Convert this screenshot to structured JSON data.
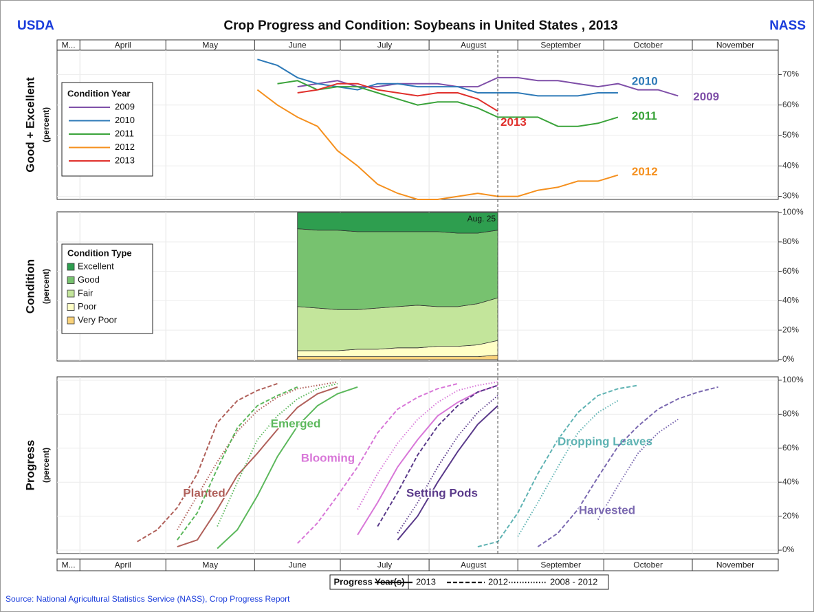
{
  "title": "Crop Progress and Condition: Soybeans in United States , 2013",
  "left_logo": "USDA",
  "right_logo": "NASS",
  "source": "Source: National Agricultural Statistics Service (NASS), Crop Progress Report",
  "marker_label": "Aug. 25",
  "marker_x": 22,
  "x_axis": {
    "xlim": [
      0,
      36
    ],
    "xticks": [
      {
        "value": 0,
        "label": "M..."
      },
      {
        "value": 1.14,
        "label": "April"
      },
      {
        "value": 5.43,
        "label": "May"
      },
      {
        "value": 9.86,
        "label": "June"
      },
      {
        "value": 14.14,
        "label": "July"
      },
      {
        "value": 18.57,
        "label": "August"
      },
      {
        "value": 23,
        "label": "September"
      },
      {
        "value": 27.29,
        "label": "October"
      },
      {
        "value": 31.71,
        "label": "November"
      }
    ]
  },
  "chart_data": [
    {
      "type": "line",
      "ylabel": "Good + Excellent",
      "yunit": "(percent)",
      "ylim": [
        29,
        78
      ],
      "yticks": [
        {
          "value": 30,
          "label": "30%"
        },
        {
          "value": 40,
          "label": "40%"
        },
        {
          "value": 50,
          "label": "50%"
        },
        {
          "value": 60,
          "label": "60%"
        },
        {
          "value": 70,
          "label": "70%"
        }
      ],
      "grid": true,
      "legend_title": "Condition Year",
      "series": [
        {
          "name": "2009",
          "color": "#7f4fa8",
          "x": [
            12,
            13,
            14,
            15,
            16,
            17,
            18,
            19,
            20,
            21,
            22,
            23,
            24,
            25,
            26,
            27,
            28,
            29,
            30,
            31
          ],
          "values": [
            66,
            67,
            68,
            66,
            66,
            67,
            67,
            67,
            66,
            66,
            69,
            69,
            68,
            68,
            67,
            66,
            67,
            65,
            65,
            63
          ]
        },
        {
          "name": "2010",
          "color": "#2e7ab8",
          "x": [
            10,
            11,
            12,
            13,
            14,
            15,
            16,
            17,
            18,
            19,
            20,
            21,
            22,
            23,
            24,
            25,
            26,
            27,
            28
          ],
          "values": [
            75,
            73,
            69,
            67,
            66,
            65,
            67,
            67,
            66,
            66,
            66,
            64,
            64,
            64,
            63,
            63,
            63,
            64,
            64
          ]
        },
        {
          "name": "2011",
          "color": "#3aa33a",
          "x": [
            11,
            12,
            13,
            14,
            15,
            16,
            17,
            18,
            19,
            20,
            21,
            22,
            23,
            24,
            25,
            26,
            27,
            28
          ],
          "values": [
            67,
            68,
            65,
            66,
            66,
            64,
            62,
            60,
            61,
            61,
            59,
            56,
            56,
            56,
            53,
            53,
            54,
            56
          ]
        },
        {
          "name": "2012",
          "color": "#f5901e",
          "x": [
            10,
            11,
            12,
            13,
            14,
            15,
            16,
            17,
            18,
            19,
            20,
            21,
            22,
            23,
            24,
            25,
            26,
            27,
            28
          ],
          "values": [
            65,
            60,
            56,
            53,
            45,
            40,
            34,
            31,
            29,
            29,
            30,
            31,
            30,
            30,
            32,
            33,
            35,
            35,
            37
          ]
        },
        {
          "name": "2013",
          "color": "#e0302c",
          "x": [
            12,
            13,
            14,
            15,
            16,
            17,
            18,
            19,
            20,
            21,
            22
          ],
          "values": [
            64,
            65,
            67,
            67,
            65,
            64,
            63,
            64,
            64,
            62,
            58
          ]
        }
      ]
    },
    {
      "type": "stacked-area",
      "ylabel": "Condition",
      "yunit": "(percent)",
      "ylim": [
        -1,
        100.5
      ],
      "yticks": [
        {
          "value": 0,
          "label": "0%"
        },
        {
          "value": 20,
          "label": "20%"
        },
        {
          "value": 40,
          "label": "40%"
        },
        {
          "value": 60,
          "label": "60%"
        },
        {
          "value": 80,
          "label": "80%"
        },
        {
          "value": 100,
          "label": "100%"
        }
      ],
      "legend_title": "Condition Type",
      "x": [
        12,
        13,
        14,
        15,
        16,
        17,
        18,
        19,
        20,
        21,
        22
      ],
      "series": [
        {
          "name": "Excellent",
          "color": "#2e9e4f",
          "values": [
            11,
            12,
            12,
            13,
            13,
            13,
            13,
            13,
            14,
            14,
            12
          ]
        },
        {
          "name": "Good",
          "color": "#77c26f",
          "values": [
            53,
            53,
            54,
            53,
            52,
            51,
            50,
            51,
            50,
            48,
            46
          ]
        },
        {
          "name": "Fair",
          "color": "#c3e59b",
          "values": [
            30,
            29,
            28,
            27,
            28,
            28,
            29,
            27,
            27,
            28,
            29
          ]
        },
        {
          "name": "Poor",
          "color": "#ffffc6",
          "values": [
            4,
            4,
            4,
            5,
            5,
            6,
            6,
            7,
            7,
            8,
            10
          ]
        },
        {
          "name": "Very Poor",
          "color": "#f9d27a",
          "values": [
            2,
            2,
            2,
            2,
            2,
            2,
            2,
            2,
            2,
            2,
            3
          ]
        }
      ]
    },
    {
      "type": "progress",
      "ylabel": "Progress",
      "yunit": "(percent)",
      "ylim": [
        -2,
        102
      ],
      "yticks": [
        {
          "value": 0,
          "label": "0%"
        },
        {
          "value": 20,
          "label": "20%"
        },
        {
          "value": 40,
          "label": "40%"
        },
        {
          "value": 60,
          "label": "60%"
        },
        {
          "value": 80,
          "label": "80%"
        },
        {
          "value": 100,
          "label": "100%"
        }
      ],
      "legend_title": "Progress Year(s)",
      "progress_years": [
        {
          "name": "2013",
          "style": "solid"
        },
        {
          "name": "2012",
          "style": "dashed"
        },
        {
          "name": "2008 - 2012",
          "style": "dotted"
        }
      ],
      "stages": [
        {
          "name": "Planted",
          "color": "#b0605a",
          "lines": [
            {
              "x": [
                6,
                7,
                8,
                9,
                10,
                11,
                12,
                13,
                14
              ],
              "values": [
                2,
                6,
                24,
                44,
                57,
                71,
                84,
                92,
                96
              ]
            },
            {
              "x": [
                4,
                5,
                6,
                7,
                8,
                9,
                10,
                11
              ],
              "values": [
                5,
                12,
                25,
                45,
                75,
                88,
                94,
                98
              ]
            },
            {
              "x": [
                6,
                7,
                8,
                9,
                10,
                11,
                12,
                13,
                14
              ],
              "values": [
                12,
                32,
                52,
                70,
                82,
                90,
                95,
                97,
                99
              ]
            }
          ]
        },
        {
          "name": "Emerged",
          "color": "#5cb85c",
          "lines": [
            {
              "x": [
                8,
                9,
                10,
                11,
                12,
                13,
                14,
                15
              ],
              "values": [
                1,
                12,
                32,
                55,
                73,
                85,
                92,
                96
              ]
            },
            {
              "x": [
                6,
                7,
                8,
                9,
                10,
                11,
                12
              ],
              "values": [
                6,
                22,
                48,
                72,
                85,
                91,
                96
              ]
            },
            {
              "x": [
                8,
                9,
                10,
                11,
                12,
                13,
                14
              ],
              "values": [
                14,
                40,
                65,
                79,
                89,
                95,
                98
              ]
            }
          ]
        },
        {
          "name": "Blooming",
          "color": "#d877d8",
          "lines": [
            {
              "x": [
                15,
                16,
                17,
                18,
                19,
                20,
                21,
                22
              ],
              "values": [
                9,
                28,
                49,
                65,
                79,
                87,
                93,
                97
              ]
            },
            {
              "x": [
                12,
                13,
                14,
                15,
                16,
                17,
                18,
                19,
                20
              ],
              "values": [
                4,
                16,
                32,
                49,
                69,
                83,
                90,
                95,
                98
              ]
            },
            {
              "x": [
                15,
                16,
                17,
                18,
                19,
                20,
                21,
                22
              ],
              "values": [
                24,
                45,
                63,
                77,
                87,
                94,
                97,
                99
              ]
            }
          ]
        },
        {
          "name": "Setting Pods",
          "color": "#5a3a8a",
          "lines": [
            {
              "x": [
                17,
                18,
                19,
                20,
                21,
                22
              ],
              "values": [
                6,
                20,
                40,
                58,
                74,
                85
              ]
            },
            {
              "x": [
                16,
                17,
                18,
                19,
                20,
                21,
                22
              ],
              "values": [
                14,
                34,
                56,
                73,
                85,
                93,
                97
              ]
            },
            {
              "x": [
                17,
                18,
                19,
                20,
                21,
                22
              ],
              "values": [
                10,
                28,
                49,
                67,
                81,
                91
              ]
            }
          ]
        },
        {
          "name": "Dropping Leaves",
          "color": "#5fb3b3",
          "lines": [
            null,
            {
              "x": [
                21,
                22,
                23,
                24,
                25,
                26,
                27,
                28,
                29
              ],
              "values": [
                2,
                5,
                22,
                45,
                65,
                81,
                91,
                95,
                97
              ]
            },
            {
              "x": [
                23,
                24,
                25,
                26,
                27,
                28
              ],
              "values": [
                8,
                28,
                49,
                69,
                81,
                88
              ]
            }
          ]
        },
        {
          "name": "Harvested",
          "color": "#7a68b0",
          "lines": [
            null,
            {
              "x": [
                24,
                25,
                26,
                27,
                28,
                29,
                30,
                31,
                32,
                33
              ],
              "values": [
                2,
                10,
                24,
                43,
                61,
                73,
                83,
                89,
                93,
                96
              ]
            },
            {
              "x": [
                27,
                28,
                29,
                30,
                31
              ],
              "values": [
                18,
                38,
                57,
                69,
                77
              ]
            }
          ]
        }
      ]
    }
  ]
}
